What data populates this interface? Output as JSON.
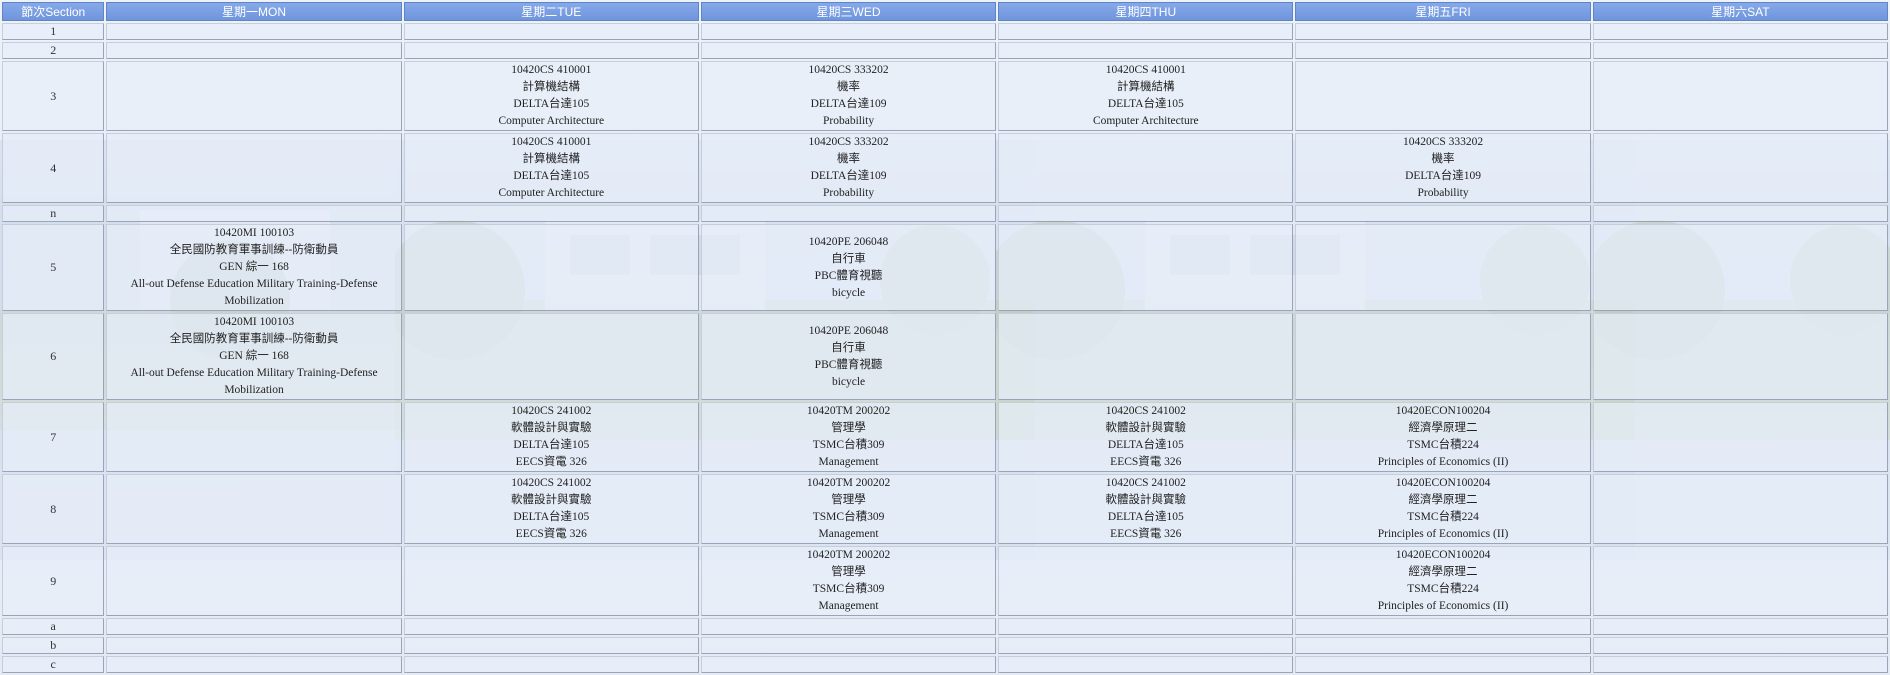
{
  "header": {
    "section": "節次Section",
    "days": [
      "星期一MON",
      "星期二TUE",
      "星期三WED",
      "星期四THU",
      "星期五FRI",
      "星期六SAT"
    ]
  },
  "rows": [
    {
      "section": "1",
      "kind": "small",
      "cells": [
        [],
        [],
        [],
        [],
        [],
        []
      ]
    },
    {
      "section": "2",
      "kind": "small",
      "cells": [
        [],
        [],
        [],
        [],
        [],
        []
      ]
    },
    {
      "section": "3",
      "kind": "4line",
      "cells": [
        [],
        [
          "10420CS 410001",
          "計算機結構",
          "DELTA台達105",
          "Computer Architecture"
        ],
        [
          "10420CS 333202",
          "機率",
          "DELTA台達109",
          "Probability"
        ],
        [
          "10420CS 410001",
          "計算機結構",
          "DELTA台達105",
          "Computer Architecture"
        ],
        [],
        []
      ]
    },
    {
      "section": "4",
      "kind": "4line",
      "cells": [
        [],
        [
          "10420CS 410001",
          "計算機結構",
          "DELTA台達105",
          "Computer Architecture"
        ],
        [
          "10420CS 333202",
          "機率",
          "DELTA台達109",
          "Probability"
        ],
        [],
        [
          "10420CS 333202",
          "機率",
          "DELTA台達109",
          "Probability"
        ],
        []
      ]
    },
    {
      "section": "n",
      "kind": "small",
      "cells": [
        [],
        [],
        [],
        [],
        [],
        []
      ]
    },
    {
      "section": "5",
      "kind": "5line",
      "cells": [
        [
          "10420MI 100103",
          "全民國防教育軍事訓練--防衛動員",
          "GEN 綜一 168",
          "All-out Defense Education Military Training-Defense Mobilization"
        ],
        [],
        [
          "10420PE 206048",
          "自行車",
          "PBC體育視聽",
          "bicycle"
        ],
        [],
        [],
        []
      ]
    },
    {
      "section": "6",
      "kind": "5line",
      "cells": [
        [
          "10420MI 100103",
          "全民國防教育軍事訓練--防衛動員",
          "GEN 綜一 168",
          "All-out Defense Education Military Training-Defense Mobilization"
        ],
        [],
        [
          "10420PE 206048",
          "自行車",
          "PBC體育視聽",
          "bicycle"
        ],
        [],
        [],
        []
      ]
    },
    {
      "section": "7",
      "kind": "4line",
      "cells": [
        [],
        [
          "10420CS 241002",
          "軟體設計與實驗",
          "DELTA台達105",
          "EECS資電 326"
        ],
        [
          "10420TM 200202",
          "管理學",
          "TSMC台積309",
          "Management"
        ],
        [
          "10420CS 241002",
          "軟體設計與實驗",
          "DELTA台達105",
          "EECS資電 326"
        ],
        [
          "10420ECON100204",
          "經濟學原理二",
          "TSMC台積224",
          "Principles of Economics (II)"
        ],
        []
      ]
    },
    {
      "section": "8",
      "kind": "4line",
      "cells": [
        [],
        [
          "10420CS 241002",
          "軟體設計與實驗",
          "DELTA台達105",
          "EECS資電 326"
        ],
        [
          "10420TM 200202",
          "管理學",
          "TSMC台積309",
          "Management"
        ],
        [
          "10420CS 241002",
          "軟體設計與實驗",
          "DELTA台達105",
          "EECS資電 326"
        ],
        [
          "10420ECON100204",
          "經濟學原理二",
          "TSMC台積224",
          "Principles of Economics (II)"
        ],
        []
      ]
    },
    {
      "section": "9",
      "kind": "4line",
      "cells": [
        [],
        [],
        [
          "10420TM 200202",
          "管理學",
          "TSMC台積309",
          "Management"
        ],
        [],
        [
          "10420ECON100204",
          "經濟學原理二",
          "TSMC台積224",
          "Principles of Economics (II)"
        ],
        []
      ]
    },
    {
      "section": "a",
      "kind": "small",
      "cells": [
        [],
        [],
        [],
        [],
        [],
        []
      ]
    },
    {
      "section": "b",
      "kind": "small",
      "cells": [
        [],
        [],
        [],
        [],
        [],
        []
      ]
    },
    {
      "section": "c",
      "kind": "small",
      "cells": [
        [],
        [],
        [],
        [],
        [],
        []
      ]
    }
  ]
}
